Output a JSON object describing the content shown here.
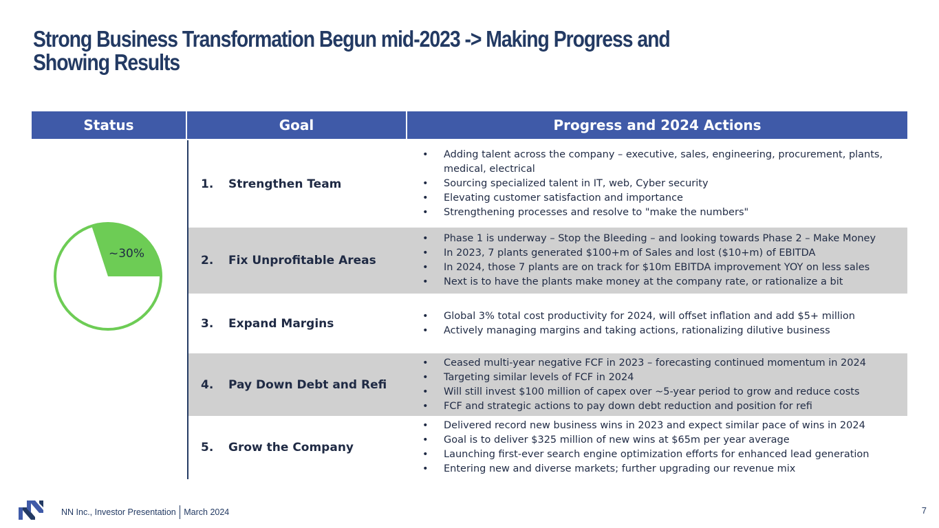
{
  "title": "Strong Business Transformation Begun mid-2023 -> Making Progress and Showing Results",
  "headers": {
    "status": "Status",
    "goal": "Goal",
    "progress": "Progress and 2024 Actions"
  },
  "status": {
    "label": "~30%",
    "fraction": 0.3,
    "fill_color": "#6dcc55",
    "ring_color": "#6dcc55"
  },
  "rows": [
    {
      "num": "1.",
      "goal": "Strengthen Team",
      "bullets": [
        "Adding talent across the company – executive, sales, engineering, procurement, plants, medical, electrical",
        "Sourcing specialized talent in IT, web, Cyber security",
        "Elevating customer satisfaction and importance",
        "Strengthening processes and resolve to \"make the numbers\""
      ]
    },
    {
      "num": "2.",
      "goal": "Fix Unprofitable Areas",
      "bullets": [
        "Phase 1 is underway – Stop the Bleeding – and looking towards Phase 2 – Make Money",
        "In 2023, 7 plants generated $100+m of Sales and lost ($10+m) of EBITDA",
        "In 2024, those 7 plants are on track for $10m EBITDA improvement YOY on less sales",
        "Next is to have the plants make money at the company rate, or rationalize a bit"
      ]
    },
    {
      "num": "3.",
      "goal": "Expand Margins",
      "bullets": [
        "Global 3% total cost productivity for 2024, will offset inflation and add $5+ million",
        "Actively managing margins and taking actions, rationalizing dilutive business"
      ]
    },
    {
      "num": "4.",
      "goal": "Pay Down Debt and Refi",
      "bullets": [
        "Ceased multi-year negative FCF in 2023 – forecasting continued momentum in 2024",
        "Targeting similar levels of FCF in 2024",
        "Will still invest $100 million of capex over ~5-year period to grow and reduce costs",
        "FCF and strategic actions to pay down debt reduction and position for refi"
      ]
    },
    {
      "num": "5.",
      "goal": "Grow the Company",
      "bullets": [
        "Delivered record new business wins in 2023 and expect similar pace of wins in 2024",
        "Goal is to deliver $325 million of new wins at $65m per year average",
        "Launching first-ever search engine optimization efforts for enhanced lead generation",
        "Entering new and diverse markets; further upgrading our revenue mix"
      ]
    }
  ],
  "bullet_char": "•",
  "footer": {
    "company": "NN Inc., Investor Presentation",
    "date": "March 2024",
    "page": "7"
  },
  "colors": {
    "header_bg": "#3f5aa8",
    "title": "#233a63",
    "shade": "#d0d0d0"
  }
}
